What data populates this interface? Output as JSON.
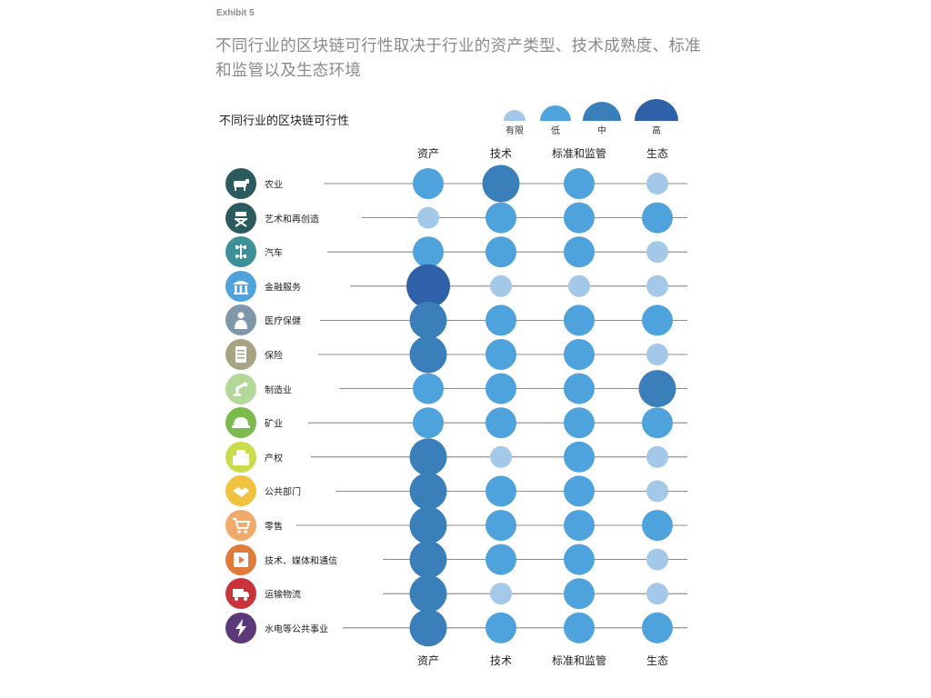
{
  "header": {
    "exhibit": "Exhibit 5",
    "title": "不同行业的区块链可行性取决于行业的资产类型、技术成熟度、标准和监管以及生态环境"
  },
  "chart_data": {
    "type": "bubble-matrix",
    "title": "不同行业的区块链可行性",
    "levels": [
      {
        "key": "limited",
        "label": "有限",
        "color": "#a3c8e8"
      },
      {
        "key": "low",
        "label": "低",
        "color": "#4fa3dc"
      },
      {
        "key": "mid",
        "label": "中",
        "color": "#3a7fb9"
      },
      {
        "key": "high",
        "label": "高",
        "color": "#2e61a8"
      }
    ],
    "columns": [
      "资产",
      "技术",
      "标准和监管",
      "生态"
    ],
    "rows": [
      {
        "label": "农业",
        "icon": "cow-icon",
        "icon_color": "#2b5a5f",
        "values": [
          "low",
          "mid",
          "low",
          "limited"
        ]
      },
      {
        "label": "艺术和再创造",
        "icon": "director-chair-icon",
        "icon_color": "#2b5a5f",
        "values": [
          "limited",
          "low",
          "low",
          "low"
        ]
      },
      {
        "label": "汽车",
        "icon": "chassis-icon",
        "icon_color": "#3d8f98",
        "values": [
          "low",
          "low",
          "low",
          "limited"
        ]
      },
      {
        "label": "金融服务",
        "icon": "bank-icon",
        "icon_color": "#4fa3dc",
        "values": [
          "high",
          "limited",
          "limited",
          "limited"
        ]
      },
      {
        "label": "医疗保健",
        "icon": "doctor-icon",
        "icon_color": "#7f97a8",
        "values": [
          "mid",
          "low",
          "low",
          "low"
        ]
      },
      {
        "label": "保险",
        "icon": "document-icon",
        "icon_color": "#a8a383",
        "values": [
          "mid",
          "low",
          "low",
          "limited"
        ]
      },
      {
        "label": "制造业",
        "icon": "robot-arm-icon",
        "icon_color": "#b3d89a",
        "values": [
          "low",
          "low",
          "low",
          "mid"
        ]
      },
      {
        "label": "矿业",
        "icon": "hard-hat-icon",
        "icon_color": "#7cba4e",
        "values": [
          "low",
          "low",
          "low",
          "low"
        ]
      },
      {
        "label": "产权",
        "icon": "building-icon",
        "icon_color": "#c9dd4c",
        "values": [
          "mid",
          "limited",
          "low",
          "limited"
        ]
      },
      {
        "label": "公共部门",
        "icon": "handshake-icon",
        "icon_color": "#f1c23f",
        "values": [
          "mid",
          "low",
          "low",
          "limited"
        ]
      },
      {
        "label": "零售",
        "icon": "cart-icon",
        "icon_color": "#f0ab6c",
        "values": [
          "mid",
          "low",
          "low",
          "low"
        ]
      },
      {
        "label": "技术、媒体和通信",
        "icon": "media-icon",
        "icon_color": "#e07b3c",
        "values": [
          "mid",
          "low",
          "low",
          "limited"
        ]
      },
      {
        "label": "运输物流",
        "icon": "truck-icon",
        "icon_color": "#c9343b",
        "values": [
          "mid",
          "limited",
          "low",
          "limited"
        ]
      },
      {
        "label": "水电等公共事业",
        "icon": "lightning-icon",
        "icon_color": "#5c3a7a",
        "values": [
          "mid",
          "low",
          "low",
          "low"
        ]
      }
    ]
  }
}
